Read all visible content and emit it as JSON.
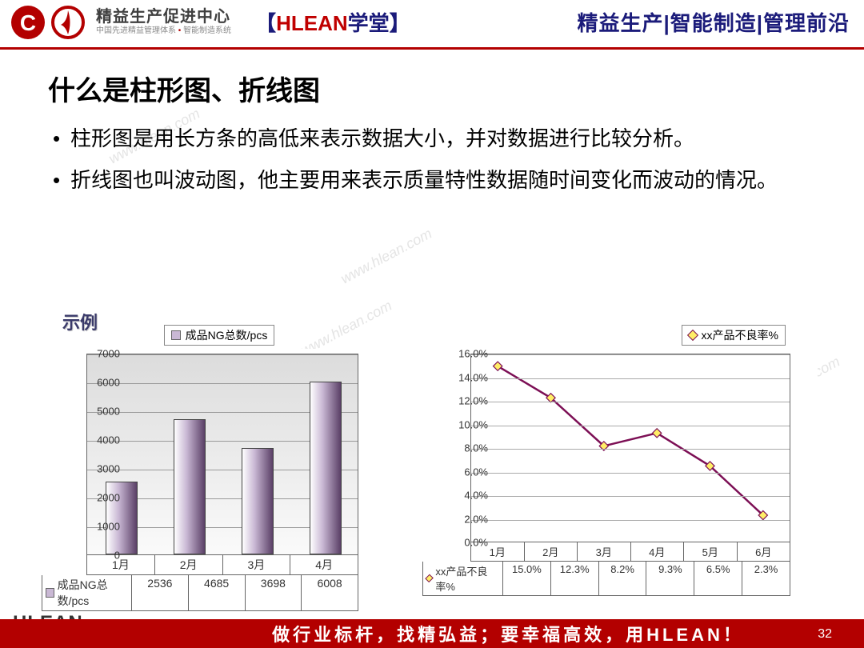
{
  "header": {
    "brand_cn": "精益生产促进中心",
    "brand_sub_a": "中国先进精益管理体系",
    "brand_sub_b": "智能制造系统",
    "school_bracket_l": "【",
    "school_red": "HLEAN",
    "school_rest": "学堂",
    "school_bracket_r": "】",
    "right": "精益生产|智能制造|管理前沿",
    "logo_color": "#b30000"
  },
  "slide": {
    "title": "什么是柱形图、折线图",
    "bullets": [
      "柱形图是用长方条的高低来表示数据大小，并对数据进行比较分析。",
      "折线图也叫波动图，他主要用来表示质量特性数据随时间变化而波动的情况。"
    ],
    "example_label": "示例"
  },
  "bar_chart": {
    "type": "bar",
    "legend_label": "成品NG总数/pcs",
    "legend_swatch": "#c9b8d4",
    "categories": [
      "1月",
      "2月",
      "3月",
      "4月"
    ],
    "values": [
      2536,
      4685,
      3698,
      6008
    ],
    "value_labels": [
      "2536",
      "4685",
      "3698",
      "6008"
    ],
    "ylim": [
      0,
      7000
    ],
    "ytick_step": 1000,
    "yticks": [
      "0",
      "1000",
      "2000",
      "3000",
      "4000",
      "5000",
      "6000",
      "7000"
    ],
    "bar_fill_gradient": [
      "#ffffff",
      "#c9b8d4",
      "#5a3f66"
    ],
    "plot_bg_gradient": [
      "#dcdcdc",
      "#fafafa"
    ],
    "grid_color": "#9a9a9a",
    "row_header": "成品NG总数/pcs"
  },
  "line_chart": {
    "type": "line",
    "legend_label": "xx产品不良率%",
    "line_color": "#7c0f55",
    "marker_fill": "#ffee66",
    "marker_border": "#7c0f55",
    "categories": [
      "1月",
      "2月",
      "3月",
      "4月",
      "5月",
      "6月"
    ],
    "values": [
      15.0,
      12.3,
      8.2,
      9.3,
      6.5,
      2.3
    ],
    "value_labels": [
      "15.0%",
      "12.3%",
      "8.2%",
      "9.3%",
      "6.5%",
      "2.3%"
    ],
    "ylim": [
      0.0,
      16.0
    ],
    "ytick_step": 2.0,
    "yticks": [
      "0.0%",
      "2.0%",
      "4.0%",
      "6.0%",
      "8.0%",
      "10.0%",
      "12.0%",
      "14.0%",
      "16.0%"
    ],
    "grid_color": "#aaaaaa",
    "row_header": "xx产品不良率%"
  },
  "footer": {
    "logo": "HLEAN",
    "url": "www.hlean.com",
    "slogan": "做行业标杆，找精弘益；要幸福高效，用HLEAN！",
    "page": "32",
    "bar_color": "#b30000"
  },
  "watermark": "www.hlean.com"
}
